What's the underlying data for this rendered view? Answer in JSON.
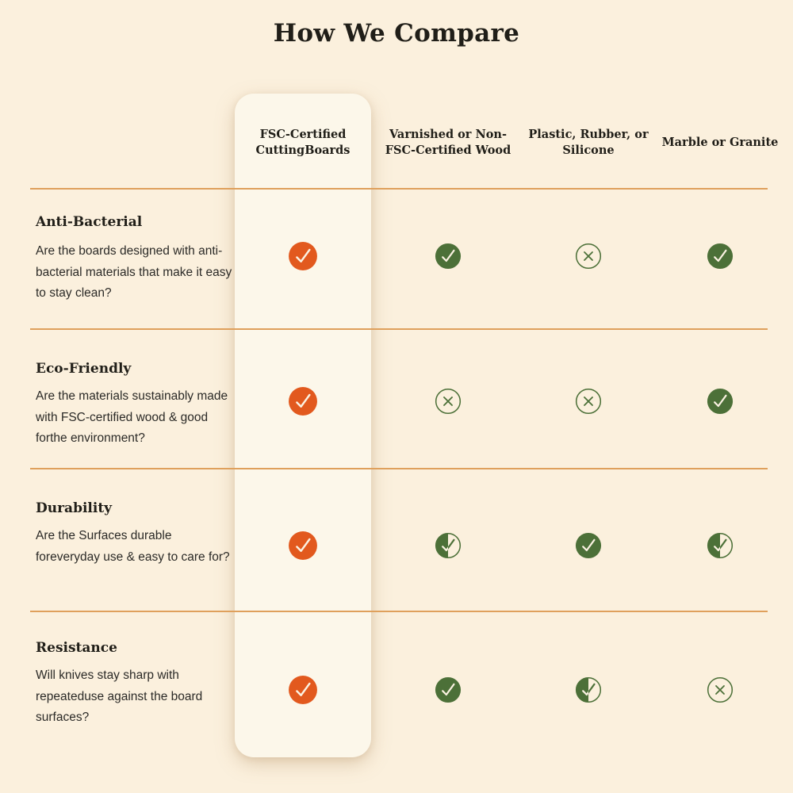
{
  "title": "How We Compare",
  "columns": [
    {
      "label": "FSC-Certified CuttingBoards",
      "highlighted": true
    },
    {
      "label": "Varnished or Non-FSC-Certified Wood",
      "highlighted": false
    },
    {
      "label": "Plastic, Rubber, or Silicone",
      "highlighted": false
    },
    {
      "label": "Marble or Granite",
      "highlighted": false
    }
  ],
  "rows": [
    {
      "title": "Anti-Bacterial",
      "description": "Are the boards designed with anti-bacterial materials that make it easy to stay clean?",
      "values": [
        "check-filled-orange",
        "check-filled-green",
        "cross-outline",
        "check-filled-green"
      ]
    },
    {
      "title": "Eco-Friendly",
      "description": "Are the materials sustainably made with FSC-certified wood & good forthe environment?",
      "values": [
        "check-filled-orange",
        "cross-outline",
        "cross-outline",
        "check-filled-green"
      ]
    },
    {
      "title": "Durability",
      "description": "Are the Surfaces durable foreveryday use & easy to care for?",
      "values": [
        "check-filled-orange",
        "check-half",
        "check-filled-green",
        "check-half"
      ]
    },
    {
      "title": "Resistance",
      "description": "Will knives stay sharp with repeateduse against the board surfaces?",
      "values": [
        "check-filled-orange",
        "check-filled-green",
        "check-half",
        "cross-outline"
      ]
    }
  ],
  "icons": {
    "check-filled-orange": "orange filled circle with checkmark",
    "check-filled-green": "green filled circle with checkmark",
    "cross-outline": "green outlined circle with cross",
    "check-half": "half-filled green circle with checkmark"
  },
  "colors": {
    "page_background": "#FBF0DD",
    "card_background": "#FCF7EA",
    "divider": "#DFA05C",
    "heading_text": "#201E18",
    "body_text": "#2B2A27",
    "accent_orange": "#E2591E",
    "accent_green": "#4C7038",
    "check_cream": "#FBF2E2"
  }
}
